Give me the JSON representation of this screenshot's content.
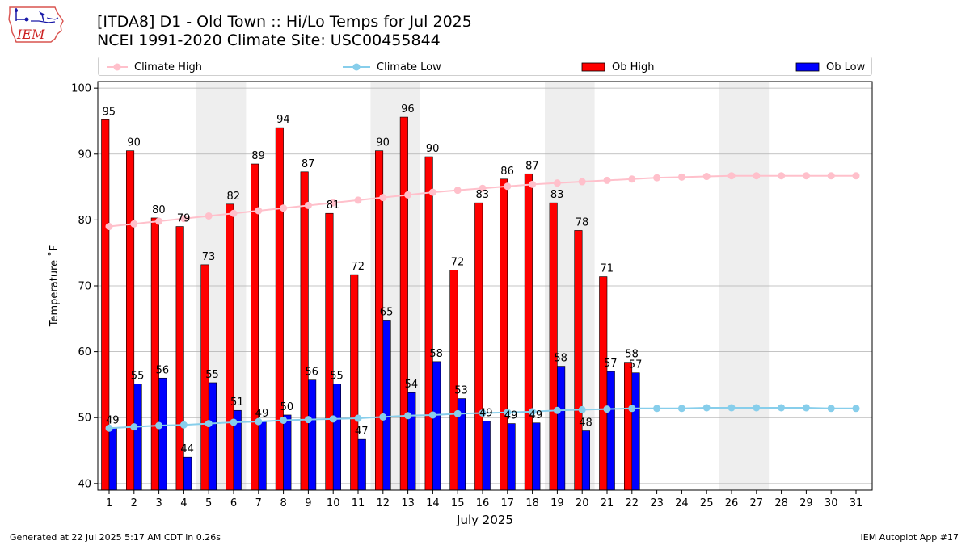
{
  "header": {
    "title_line1": "[ITDA8] D1 - Old Town  :: Hi/Lo Temps for Jul 2025",
    "title_line2": "NCEI 1991-2020 Climate Site: USC00455844"
  },
  "logo": {
    "text": "IEM",
    "icon": "iem-iowa-logo-icon"
  },
  "legend": {
    "climate_high": "Climate High",
    "climate_low": "Climate Low",
    "ob_high": "Ob High",
    "ob_low": "Ob Low"
  },
  "colors": {
    "ob_high": "#ff0000",
    "ob_low": "#0000ff",
    "climate_high": "#ffc0cb",
    "climate_low": "#87ceeb",
    "weekend_shade": "#eeeeee",
    "grid": "#b0b0b0"
  },
  "footer": {
    "generated": "Generated at 22 Jul 2025 5:17 AM CDT in 0.26s",
    "app": "IEM Autoplot App #17"
  },
  "chart_data": {
    "type": "bar",
    "xlabel": "July 2025",
    "ylabel": "Temperature ˚F",
    "ylim": [
      39,
      101
    ],
    "yticks": [
      40,
      50,
      60,
      70,
      80,
      90,
      100
    ],
    "days": [
      1,
      2,
      3,
      4,
      5,
      6,
      7,
      8,
      9,
      10,
      11,
      12,
      13,
      14,
      15,
      16,
      17,
      18,
      19,
      20,
      21,
      22,
      23,
      24,
      25,
      26,
      27,
      28,
      29,
      30,
      31
    ],
    "shaded_days": [
      [
        5,
        6
      ],
      [
        12,
        13
      ],
      [
        19,
        20
      ],
      [
        26,
        27
      ]
    ],
    "grid": true,
    "legend_position": "top",
    "series": [
      {
        "name": "Ob High",
        "kind": "bar",
        "values": [
          95,
          90,
          80,
          79,
          73,
          82,
          89,
          94,
          87,
          81,
          72,
          90,
          96,
          90,
          72,
          83,
          86,
          87,
          83,
          78,
          71,
          58
        ],
        "plotted": [
          95.2,
          90.5,
          80.3,
          79.0,
          73.2,
          82.4,
          88.5,
          94.0,
          87.3,
          81.0,
          71.7,
          90.5,
          95.6,
          89.6,
          72.4,
          82.6,
          86.2,
          87.0,
          82.6,
          78.4,
          71.4,
          58.4
        ]
      },
      {
        "name": "Ob Low",
        "kind": "bar",
        "values": [
          49,
          55,
          56,
          44,
          55,
          51,
          49,
          50,
          56,
          55,
          47,
          65,
          54,
          58,
          53,
          49,
          49,
          49,
          58,
          48,
          57,
          57
        ],
        "plotted": [
          48.4,
          55.1,
          56.0,
          44.0,
          55.3,
          51.1,
          49.4,
          50.4,
          55.7,
          55.1,
          46.7,
          64.8,
          53.8,
          58.5,
          52.9,
          49.5,
          49.1,
          49.2,
          57.8,
          48.0,
          57.0,
          56.8
        ]
      },
      {
        "name": "Climate High",
        "kind": "line",
        "values": [
          79.0,
          79.4,
          79.8,
          80.2,
          80.6,
          81.0,
          81.4,
          81.8,
          82.2,
          82.6,
          83.0,
          83.4,
          83.8,
          84.2,
          84.5,
          84.8,
          85.1,
          85.4,
          85.6,
          85.8,
          86.0,
          86.2,
          86.4,
          86.5,
          86.6,
          86.7,
          86.7,
          86.7,
          86.7,
          86.7,
          86.7
        ]
      },
      {
        "name": "Climate Low",
        "kind": "line",
        "values": [
          48.4,
          48.6,
          48.8,
          48.9,
          49.1,
          49.3,
          49.4,
          49.6,
          49.7,
          49.8,
          49.9,
          50.1,
          50.3,
          50.4,
          50.6,
          50.7,
          50.8,
          50.9,
          51.1,
          51.2,
          51.3,
          51.4,
          51.4,
          51.4,
          51.5,
          51.5,
          51.5,
          51.5,
          51.5,
          51.4,
          51.4
        ]
      }
    ]
  }
}
